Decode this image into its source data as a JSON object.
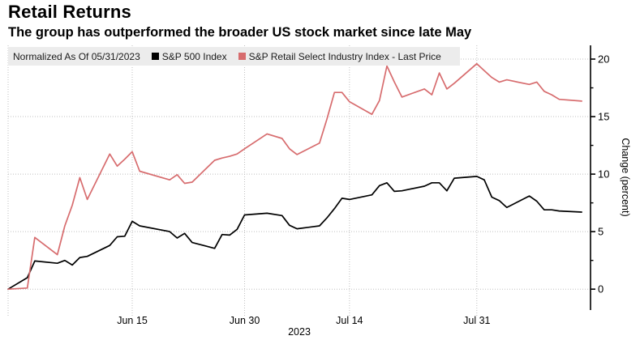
{
  "title": "Retail Returns",
  "subtitle": "The group has outperformed the broader US stock market since late May",
  "legend": {
    "note": "Normalized As Of 05/31/2023",
    "items": [
      {
        "label": "S&P 500 Index",
        "color": "#000000"
      },
      {
        "label": "S&P Retail Select Industry Index - Last Price",
        "color": "#d76c6e"
      }
    ],
    "background": "#ececec"
  },
  "colors": {
    "grid": "#bfbfbf",
    "axis": "#000000",
    "text": "#000000"
  },
  "chart_data": {
    "type": "line",
    "title": "Retail Returns",
    "ylabel": "Change (percent)",
    "year_label": "2023",
    "ylim": [
      -1.5,
      21.5
    ],
    "yticks": [
      0,
      5,
      10,
      15,
      20
    ],
    "yticks_minor": [
      2.5,
      7.5,
      12.5,
      17.5
    ],
    "xticks": [
      {
        "label": "Jun 15",
        "date": "06/15"
      },
      {
        "label": "Jun 30",
        "date": "06/30"
      },
      {
        "label": "Jul 14",
        "date": "07/14"
      },
      {
        "label": "Jul 31",
        "date": "07/31"
      }
    ],
    "grid": true,
    "legend_position": "top",
    "dates": [
      "05/31",
      "06/01",
      "06/02",
      "06/05",
      "06/06",
      "06/07",
      "06/08",
      "06/09",
      "06/12",
      "06/13",
      "06/14",
      "06/15",
      "06/16",
      "06/20",
      "06/21",
      "06/22",
      "06/23",
      "06/26",
      "06/27",
      "06/28",
      "06/29",
      "06/30",
      "07/03",
      "07/05",
      "07/06",
      "07/07",
      "07/10",
      "07/11",
      "07/12",
      "07/13",
      "07/14",
      "07/17",
      "07/18",
      "07/19",
      "07/20",
      "07/21",
      "07/24",
      "07/25",
      "07/26",
      "07/27",
      "07/28",
      "07/31",
      "08/01",
      "08/02",
      "08/03",
      "08/04",
      "08/07",
      "08/08",
      "08/09",
      "08/10",
      "08/11",
      "08/14"
    ],
    "series": [
      {
        "name": "S&P 500 Index",
        "color": "#000000",
        "values": [
          0,
          1.0,
          2.45,
          2.25,
          2.5,
          2.1,
          2.75,
          2.85,
          3.8,
          4.55,
          4.6,
          5.9,
          5.5,
          5.0,
          4.45,
          4.85,
          4.05,
          3.55,
          4.75,
          4.7,
          5.2,
          6.45,
          6.6,
          6.4,
          5.55,
          5.25,
          5.5,
          6.2,
          7.0,
          7.9,
          7.8,
          8.2,
          9.0,
          9.25,
          8.5,
          8.55,
          8.95,
          9.25,
          9.25,
          8.55,
          9.65,
          9.8,
          9.5,
          8.0,
          7.7,
          7.1,
          8.1,
          7.65,
          6.9,
          6.9,
          6.8,
          6.7
        ]
      },
      {
        "name": "S&P Retail Select Industry Index - Last Price",
        "color": "#d76c6e",
        "values": [
          0,
          0.1,
          4.5,
          3.0,
          5.5,
          7.3,
          9.7,
          7.8,
          11.75,
          10.7,
          11.3,
          11.95,
          10.25,
          9.5,
          9.95,
          9.2,
          9.3,
          11.2,
          11.4,
          11.55,
          11.75,
          12.2,
          13.5,
          13.1,
          12.2,
          11.7,
          12.7,
          14.8,
          17.1,
          17.1,
          16.3,
          15.2,
          16.4,
          19.4,
          18.0,
          16.7,
          17.4,
          16.9,
          18.8,
          17.4,
          17.9,
          19.6,
          19.0,
          18.4,
          18.0,
          18.2,
          17.8,
          18.0,
          17.2,
          16.9,
          16.5,
          16.35
        ]
      }
    ]
  }
}
